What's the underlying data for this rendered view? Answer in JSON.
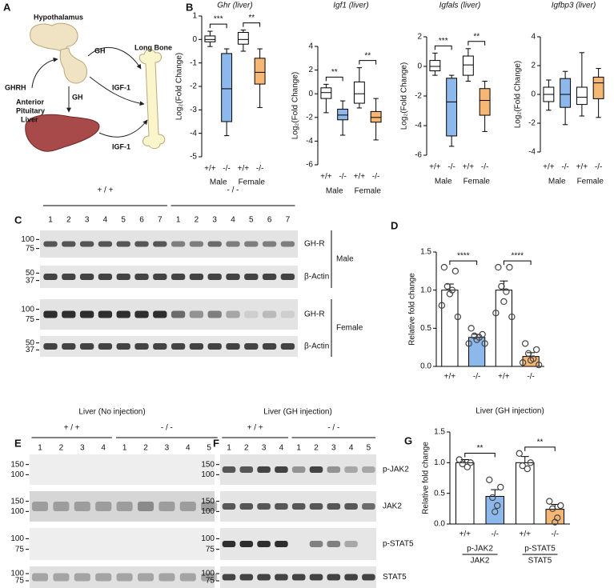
{
  "panel_labels": [
    "A",
    "B",
    "C",
    "D",
    "E",
    "F",
    "G"
  ],
  "diagram": {
    "hypothalamus": "Hypothalamus",
    "ghrh": "GHRH",
    "gh_to_bone": "GH",
    "long_bone": "Long Bone",
    "anterior_pituitary": [
      "Anterior",
      "Pituitary"
    ],
    "gh_to_liver": "GH",
    "liver": "Liver",
    "igf1_from_pituitary_side": "IGF-1",
    "igf1_from_liver": "IGF-1"
  },
  "blot_c": {
    "groups": [
      "+ / +",
      "- / -"
    ],
    "lanes": [
      "1",
      "2",
      "3",
      "4",
      "5",
      "6",
      "7",
      "1",
      "2",
      "3",
      "4",
      "5",
      "6",
      "7"
    ],
    "rows": [
      {
        "label": "GH-R",
        "markers": [
          "100",
          "75"
        ]
      },
      {
        "label": "β-Actin",
        "markers": [
          "50",
          "37"
        ]
      },
      {
        "label": "GH-R",
        "markers": [
          "100",
          "75"
        ]
      },
      {
        "label": "β-Actin",
        "markers": [
          "50",
          "37"
        ]
      }
    ],
    "sexes": [
      "Male",
      "Female"
    ]
  },
  "blot_e": {
    "title": "Liver  (No injection)",
    "groups": [
      "+ / +",
      "- / -"
    ],
    "lanes": [
      "1",
      "2",
      "3",
      "4",
      "1",
      "2",
      "3",
      "4",
      "5"
    ],
    "rows": [
      {
        "markers": [
          "150",
          "100"
        ]
      },
      {
        "markers": [
          "150",
          "100"
        ]
      },
      {
        "markers": [
          "100",
          "75"
        ]
      },
      {
        "markers": [
          "100",
          "75"
        ]
      }
    ]
  },
  "blot_f": {
    "title": "Liver  (GH injection)",
    "groups": [
      "+ / +",
      "- / -"
    ],
    "lanes": [
      "1",
      "2",
      "3",
      "4",
      "1",
      "2",
      "3",
      "4",
      "5"
    ],
    "rows": [
      {
        "label": "p-JAK2",
        "markers": [
          "150",
          "100"
        ]
      },
      {
        "label": "JAK2",
        "markers": [
          "150",
          "100"
        ]
      },
      {
        "label": "p-STAT5",
        "markers": [
          "100",
          "75"
        ]
      },
      {
        "label": "STAT5",
        "markers": [
          "100",
          "75"
        ]
      }
    ]
  },
  "chart_data": [
    {
      "type": "box",
      "title": "Ghr (liver)",
      "ylabel": "Log₂(Fold Change)",
      "categories": [
        "+/+",
        "-/-",
        "+/+",
        "-/-"
      ],
      "groups": [
        "Male",
        "Female"
      ],
      "colors": [
        "#ffffff",
        "#8db8ec",
        "#ffffff",
        "#f6b774"
      ],
      "min": [
        -0.3,
        -4.1,
        -0.5,
        -2.9
      ],
      "q1": [
        -0.1,
        -3.5,
        -0.2,
        -1.9
      ],
      "median": [
        0,
        -2.1,
        0,
        -1.4
      ],
      "q3": [
        0.15,
        -0.6,
        0.3,
        -0.8
      ],
      "max": [
        0.35,
        -0.4,
        0.4,
        -0.4
      ],
      "ylim": [
        -5,
        1
      ],
      "yticks": [
        -5,
        -4,
        -3,
        -2,
        -1,
        0,
        1
      ],
      "group_significance": [
        "***",
        "**"
      ]
    },
    {
      "type": "box",
      "title": "Igf1 (liver)",
      "ylabel": "Log₂(Fold Change)",
      "categories": [
        "+/+",
        "-/-",
        "+/+",
        "-/-"
      ],
      "groups": [
        "Male",
        "Female"
      ],
      "colors": [
        "#ffffff",
        "#8db8ec",
        "#ffffff",
        "#f6b774"
      ],
      "min": [
        -1.6,
        -3.5,
        -1.2,
        -3.9
      ],
      "q1": [
        -0.4,
        -2.2,
        -0.8,
        -2.4
      ],
      "median": [
        0.1,
        -1.8,
        0,
        -2.0
      ],
      "q3": [
        0.5,
        -1.3,
        1.0,
        -1.5
      ],
      "max": [
        0.8,
        -0.6,
        2.2,
        -0.4
      ],
      "ylim": [
        -6,
        4
      ],
      "yticks": [
        -6,
        -4,
        -2,
        0,
        2,
        4
      ],
      "group_significance": [
        "**",
        "**"
      ]
    },
    {
      "type": "box",
      "title": "Igfals (liver)",
      "ylabel": "Log₂(Fold Change)",
      "categories": [
        "+/+",
        "-/-",
        "+/+",
        "-/-"
      ],
      "groups": [
        "Male",
        "Female"
      ],
      "colors": [
        "#ffffff",
        "#8db8ec",
        "#ffffff",
        "#f6b774"
      ],
      "min": [
        -0.6,
        -5.4,
        -1.0,
        -4.4
      ],
      "q1": [
        -0.3,
        -4.7,
        -0.6,
        -3.3
      ],
      "median": [
        0,
        -2.4,
        0.1,
        -2.3
      ],
      "q3": [
        0.4,
        -0.8,
        0.7,
        -1.5
      ],
      "max": [
        0.9,
        -0.6,
        1.2,
        -1.0
      ],
      "ylim": [
        -6,
        2
      ],
      "yticks": [
        -6,
        -4,
        -2,
        0,
        2
      ],
      "group_significance": [
        "***",
        "**"
      ]
    },
    {
      "type": "box",
      "title": "Igfbp3 (liver)",
      "ylabel": "Log₂(Fold Change)",
      "categories": [
        "+/+",
        "-/-",
        "+/+",
        "-/-"
      ],
      "groups": [
        "Male",
        "Female"
      ],
      "colors": [
        "#ffffff",
        "#8db8ec",
        "#ffffff",
        "#f6b774"
      ],
      "min": [
        -1.1,
        -2.1,
        -1.5,
        -1.6
      ],
      "q1": [
        -0.5,
        -0.9,
        -0.7,
        -0.3
      ],
      "median": [
        0,
        0,
        -0.2,
        0.8
      ],
      "q3": [
        0.5,
        1.1,
        0.5,
        1.2
      ],
      "max": [
        1.0,
        1.6,
        2.9,
        1.8
      ],
      "ylim": [
        -4,
        4
      ],
      "yticks": [
        -4,
        -2,
        0,
        2,
        4
      ]
    },
    {
      "type": "bar",
      "ylabel": "Relative fold change",
      "categories": [
        "+/+",
        "-/-",
        "+/+",
        "-/-"
      ],
      "colors": [
        "#ffffff",
        "#8db8ec",
        "#ffffff",
        "#f6b774"
      ],
      "values": [
        1.0,
        0.38,
        1.0,
        0.13
      ],
      "errors": [
        0.08,
        0.04,
        0.12,
        0.05
      ],
      "points": [
        [
          1.3,
          1.25,
          1.05,
          1.0,
          0.95,
          0.8,
          0.65
        ],
        [
          0.5,
          0.42,
          0.4,
          0.38,
          0.35,
          0.3,
          0.3
        ],
        [
          1.3,
          1.3,
          1.05,
          0.98,
          0.85,
          0.7,
          0.65
        ],
        [
          0.3,
          0.22,
          0.17,
          0.1,
          0.08,
          0.05,
          0.02
        ]
      ],
      "ylim": [
        0,
        1.5
      ],
      "yticks": [
        {
          "value": 0,
          "label": "0.0"
        },
        {
          "value": 0.5,
          "label": "0.5"
        },
        {
          "value": 1,
          "label": "1.0"
        },
        {
          "value": 1.5,
          "label": "1.5"
        }
      ],
      "pair_significance": [
        "****",
        "****"
      ]
    },
    {
      "type": "bar",
      "title": "Liver  (GH injection)",
      "ylabel": "Relative fold change",
      "categories": [
        "+/+",
        "-/-",
        "+/+",
        "-/-"
      ],
      "groups": [
        {
          "numerator": "p-JAK2",
          "denominator": "JAK2"
        },
        {
          "numerator": "p-STAT5",
          "denominator": "STAT5"
        }
      ],
      "colors": [
        "#ffffff",
        "#8db8ec",
        "#ffffff",
        "#f6b774"
      ],
      "values": [
        1.0,
        0.45,
        1.0,
        0.24
      ],
      "errors": [
        0.05,
        0.11,
        0.1,
        0.08
      ],
      "points": [
        [
          1.05,
          1.0,
          0.98,
          0.93
        ],
        [
          0.72,
          0.6,
          0.43,
          0.3,
          0.2
        ],
        [
          1.15,
          1.0,
          0.95,
          0.9
        ],
        [
          0.37,
          0.3,
          0.25,
          0.1,
          0.03
        ]
      ],
      "ylim": [
        0,
        1.5
      ],
      "yticks": [
        {
          "value": 0,
          "label": "0.0"
        },
        {
          "value": 0.5,
          "label": "0.5"
        },
        {
          "value": 1,
          "label": "1.0"
        },
        {
          "value": 1.5,
          "label": "1.5"
        }
      ],
      "pair_significance": [
        "**",
        "**"
      ]
    }
  ]
}
